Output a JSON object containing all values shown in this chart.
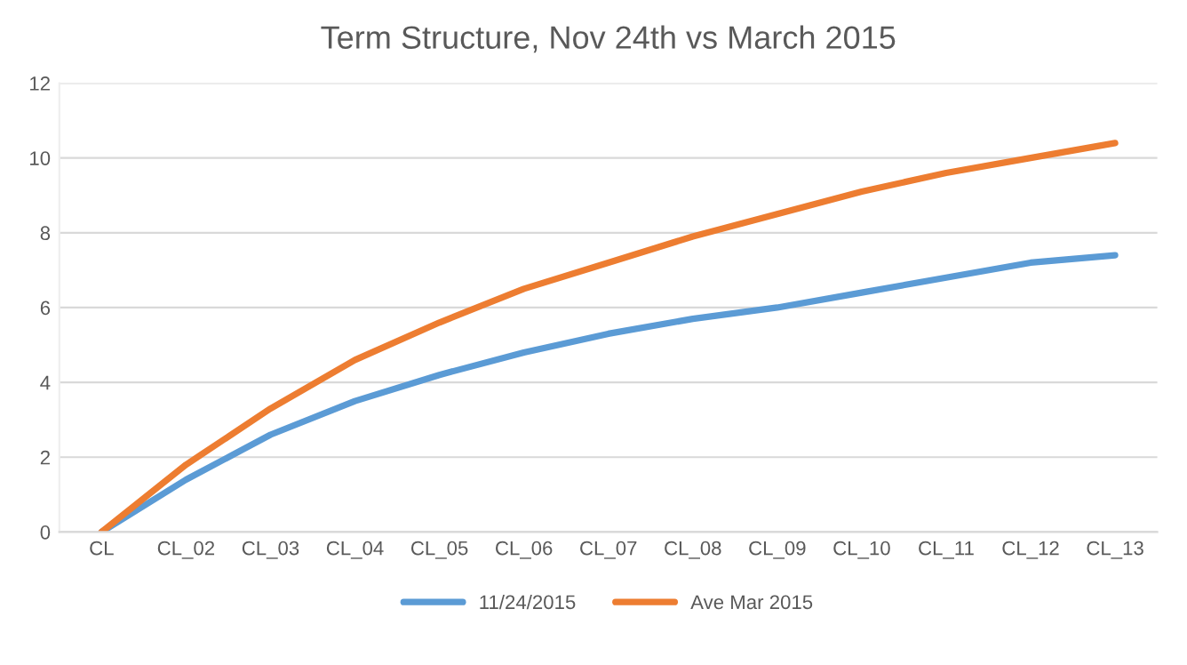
{
  "chart_data": {
    "type": "line",
    "title": "Term Structure, Nov 24th vs March 2015",
    "categories": [
      "CL",
      "CL_02",
      "CL_03",
      "CL_04",
      "CL_05",
      "CL_06",
      "CL_07",
      "CL_08",
      "CL_09",
      "CL_10",
      "CL_11",
      "CL_12",
      "CL_13"
    ],
    "series": [
      {
        "name": "11/24/2015",
        "color": "#5b9bd5",
        "values": [
          0,
          1.4,
          2.6,
          3.5,
          4.2,
          4.8,
          5.3,
          5.7,
          6.0,
          6.4,
          6.8,
          7.2,
          7.4
        ]
      },
      {
        "name": "Ave Mar 2015",
        "color": "#ed7d31",
        "values": [
          0,
          1.8,
          3.3,
          4.6,
          5.6,
          6.5,
          7.2,
          7.9,
          8.5,
          9.1,
          9.6,
          10.0,
          10.4
        ]
      }
    ],
    "ylim": [
      0,
      12
    ],
    "yticks": [
      0,
      2,
      4,
      6,
      8,
      10,
      12
    ],
    "grid": "y",
    "legend": "bottom",
    "marker": "none",
    "line_style": "solid"
  }
}
